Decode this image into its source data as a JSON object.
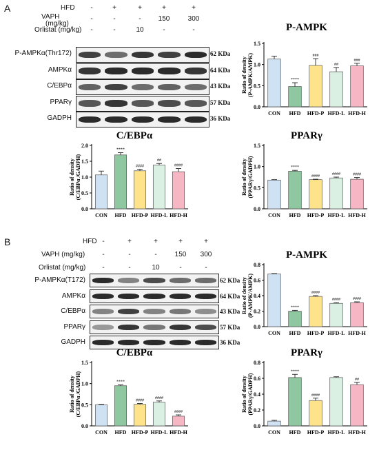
{
  "panels": [
    {
      "letter": "A",
      "treatments": {
        "labels": [
          "HFD",
          "VAPH\n(mg/kg)",
          "Orlistat (mg/kg)"
        ],
        "rows": [
          [
            "-",
            "+",
            "+",
            "+",
            "+"
          ],
          [
            "-",
            "-",
            "-",
            "150",
            "300"
          ],
          [
            "-",
            "-",
            "10",
            "-",
            "-"
          ]
        ]
      },
      "blots": [
        {
          "label": "P-AMPKα(Thr172)",
          "kda": "62 KDa",
          "intensity": [
            0.75,
            0.55,
            0.8,
            0.75,
            0.85
          ]
        },
        {
          "label": "AMPKα",
          "kda": "64 KDa",
          "intensity": [
            0.8,
            0.85,
            0.85,
            0.85,
            0.8
          ]
        },
        {
          "label": "C/EBPα",
          "kda": "43 KDa",
          "intensity": [
            0.6,
            0.75,
            0.55,
            0.6,
            0.55
          ]
        },
        {
          "label": "PPARγ",
          "kda": "57 KDa",
          "intensity": [
            0.65,
            0.8,
            0.65,
            0.7,
            0.65
          ]
        },
        {
          "label": "GADPH",
          "kda": "36 KDa",
          "intensity": [
            0.85,
            0.85,
            0.85,
            0.85,
            0.85
          ]
        }
      ]
    },
    {
      "letter": "B",
      "treatments": {
        "labels": [
          "HFD",
          "VAPH (mg/kg)",
          "Orlistat (mg/kg)"
        ],
        "rows": [
          [
            "-",
            "+",
            "+",
            "+",
            "+"
          ],
          [
            "-",
            "-",
            "-",
            "150",
            "300"
          ],
          [
            "-",
            "-",
            "10",
            "-",
            "-"
          ]
        ]
      },
      "blots": [
        {
          "label": "P-AMPKα(T172)",
          "kda": "62 KDa",
          "intensity": [
            0.85,
            0.45,
            0.7,
            0.55,
            0.55
          ]
        },
        {
          "label": "AMPKα",
          "kda": "64 KDa",
          "intensity": [
            0.85,
            0.85,
            0.85,
            0.85,
            0.85
          ]
        },
        {
          "label": "C/EBPα",
          "kda": "43 KDa",
          "intensity": [
            0.45,
            0.75,
            0.45,
            0.5,
            0.4
          ]
        },
        {
          "label": "PPARγ",
          "kda": "57 KDa",
          "intensity": [
            0.35,
            0.8,
            0.5,
            0.8,
            0.7
          ]
        },
        {
          "label": "GADPH",
          "kda": "36 KDa",
          "intensity": [
            0.85,
            0.85,
            0.85,
            0.85,
            0.85
          ]
        }
      ]
    }
  ],
  "colors": [
    "#cfe2f3",
    "#8fc7a0",
    "#ffe38a",
    "#d9f0e3",
    "#f7b6c4"
  ],
  "chart_data": [
    {
      "type": "bar",
      "title": "P-AMPK",
      "ylabel": "Ratio of density\n(P-AMPK/AMPK)",
      "categories": [
        "CON",
        "HFD",
        "HFD-P",
        "HFD-L",
        "HFD-H"
      ],
      "values": [
        1.13,
        0.48,
        0.98,
        0.83,
        0.97
      ],
      "errors": [
        0.07,
        0.09,
        0.16,
        0.1,
        0.06
      ],
      "annotations": [
        "",
        "****",
        "###",
        "##",
        "###"
      ],
      "ylim": [
        0,
        1.5
      ],
      "ticks": [
        "0.0",
        "0.5",
        "1.0",
        "1.5"
      ]
    },
    {
      "type": "bar",
      "title": "C/EBPα",
      "ylabel": "Ratio of density\n(C/EBPα /GADPH)",
      "categories": [
        "CON",
        "HFD",
        "HFD-P",
        "HFD-L",
        "HFD-H"
      ],
      "values": [
        1.07,
        1.7,
        1.2,
        1.38,
        1.17
      ],
      "errors": [
        0.12,
        0.07,
        0.05,
        0.05,
        0.1
      ],
      "annotations": [
        "",
        "****",
        "####",
        "##",
        "####"
      ],
      "ylim": [
        0,
        2.0
      ],
      "ticks": [
        "0.0",
        "0.5",
        "1.0",
        "1.5",
        "2.0"
      ]
    },
    {
      "type": "bar",
      "title": "PPARγ",
      "ylabel": "Ratio of density\n(PPARγ/GADPH)",
      "categories": [
        "CON",
        "HFD",
        "HFD-P",
        "HFD-L",
        "HFD-H"
      ],
      "values": [
        0.68,
        0.89,
        0.69,
        0.73,
        0.7
      ],
      "errors": [
        0.01,
        0.02,
        0.01,
        0.02,
        0.04
      ],
      "annotations": [
        "",
        "****",
        "####",
        "####",
        "####"
      ],
      "ylim": [
        0,
        1.5
      ],
      "ticks": [
        "0.0",
        "0.5",
        "1.0",
        "1.5"
      ]
    },
    {
      "type": "bar",
      "title": "P-AMPK",
      "ylabel": "Ratio of density\n(P-AMPK/AMPK)",
      "categories": [
        "CON",
        "HFD",
        "HFD-P",
        "HFD-L",
        "HFD-H"
      ],
      "values": [
        0.68,
        0.2,
        0.39,
        0.3,
        0.31
      ],
      "errors": [
        0.005,
        0.01,
        0.01,
        0.01,
        0.01
      ],
      "annotations": [
        "",
        "****",
        "####",
        "####",
        "####"
      ],
      "ylim": [
        0,
        0.8
      ],
      "ticks": [
        "0.0",
        "0.2",
        "0.4",
        "0.6",
        "0.8"
      ]
    },
    {
      "type": "bar",
      "title": "C/EBPα",
      "ylabel": "Ratio of density\n(C/EBPα /GADPH)",
      "categories": [
        "CON",
        "HFD",
        "HFD-P",
        "HFD-L",
        "HFD-H"
      ],
      "values": [
        0.5,
        0.95,
        0.51,
        0.56,
        0.23
      ],
      "errors": [
        0.01,
        0.02,
        0.02,
        0.03,
        0.03
      ],
      "annotations": [
        "",
        "****",
        "####",
        "####",
        "####"
      ],
      "ylim": [
        0,
        1.5
      ],
      "ticks": [
        "0.0",
        "0.5",
        "1.0",
        "1.5"
      ]
    },
    {
      "type": "bar",
      "title": "PPARγ",
      "ylabel": "Ratio of density\n(PPARγ/GADPH)",
      "categories": [
        "CON",
        "HFD",
        "HFD-P",
        "HFD-L",
        "HFD-H"
      ],
      "values": [
        0.06,
        0.61,
        0.32,
        0.61,
        0.52
      ],
      "errors": [
        0.01,
        0.04,
        0.03,
        0.01,
        0.03
      ],
      "annotations": [
        "",
        "****",
        "####",
        "",
        "##"
      ],
      "ylim": [
        0,
        0.8
      ],
      "ticks": [
        "0.0",
        "0.2",
        "0.4",
        "0.6",
        "0.8"
      ]
    }
  ]
}
